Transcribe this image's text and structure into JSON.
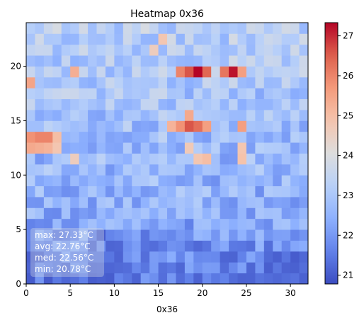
{
  "chart_data": {
    "type": "heatmap",
    "title": "Heatmap 0x36",
    "xlabel": "0x36",
    "ylabel": "",
    "xlim": [
      0,
      32
    ],
    "ylim": [
      0,
      24
    ],
    "x_ticks": [
      0,
      5,
      10,
      15,
      20,
      25,
      30
    ],
    "y_ticks": [
      0,
      5,
      10,
      15,
      20
    ],
    "colormap": "coolwarm",
    "color_range": [
      20.78,
      27.33
    ],
    "colorbar_ticks": [
      21,
      22,
      23,
      24,
      25,
      26,
      27
    ],
    "stats_box": {
      "max": "max: 27.33°C",
      "avg": "avg: 22.76°C",
      "med": "med: 22.56°C",
      "min": "min: 20.78°C"
    },
    "grid_rows": 24,
    "grid_cols": 32,
    "hotspots": [
      {
        "col": 19,
        "row": 19,
        "value": 27.33
      },
      {
        "col": 23,
        "row": 19,
        "value": 27.2
      },
      {
        "col": 18,
        "row": 19,
        "value": 26.6
      },
      {
        "col": 20,
        "row": 19,
        "value": 26.4
      },
      {
        "col": 17,
        "row": 19,
        "value": 26.0
      },
      {
        "col": 22,
        "row": 19,
        "value": 26.2
      },
      {
        "col": 24,
        "row": 19,
        "value": 25.6
      },
      {
        "col": 0,
        "row": 18,
        "value": 25.5
      },
      {
        "col": 5,
        "row": 19,
        "value": 25.3
      },
      {
        "col": 18,
        "row": 14,
        "value": 26.6
      },
      {
        "col": 19,
        "row": 14,
        "value": 26.3
      },
      {
        "col": 17,
        "row": 14,
        "value": 25.8
      },
      {
        "col": 18,
        "row": 15,
        "value": 25.4
      },
      {
        "col": 16,
        "row": 14,
        "value": 25.2
      },
      {
        "col": 20,
        "row": 14,
        "value": 25.6
      },
      {
        "col": 24,
        "row": 14,
        "value": 25.6
      },
      {
        "col": 1,
        "row": 13,
        "value": 26.0
      },
      {
        "col": 2,
        "row": 13,
        "value": 26.0
      },
      {
        "col": 0,
        "row": 13,
        "value": 25.8
      },
      {
        "col": 3,
        "row": 13,
        "value": 25.0
      },
      {
        "col": 0,
        "row": 12,
        "value": 25.4
      },
      {
        "col": 1,
        "row": 12,
        "value": 25.3
      },
      {
        "col": 2,
        "row": 12,
        "value": 25.2
      },
      {
        "col": 3,
        "row": 12,
        "value": 24.8
      },
      {
        "col": 20,
        "row": 11,
        "value": 25.0
      },
      {
        "col": 19,
        "row": 11,
        "value": 24.8
      },
      {
        "col": 24,
        "row": 11,
        "value": 24.9
      },
      {
        "col": 24,
        "row": 12,
        "value": 24.8
      },
      {
        "col": 15,
        "row": 22,
        "value": 24.8
      },
      {
        "col": 14,
        "row": 21,
        "value": 24.6
      },
      {
        "col": 5,
        "row": 11,
        "value": 24.6
      },
      {
        "col": 18,
        "row": 12,
        "value": 24.7
      }
    ]
  }
}
